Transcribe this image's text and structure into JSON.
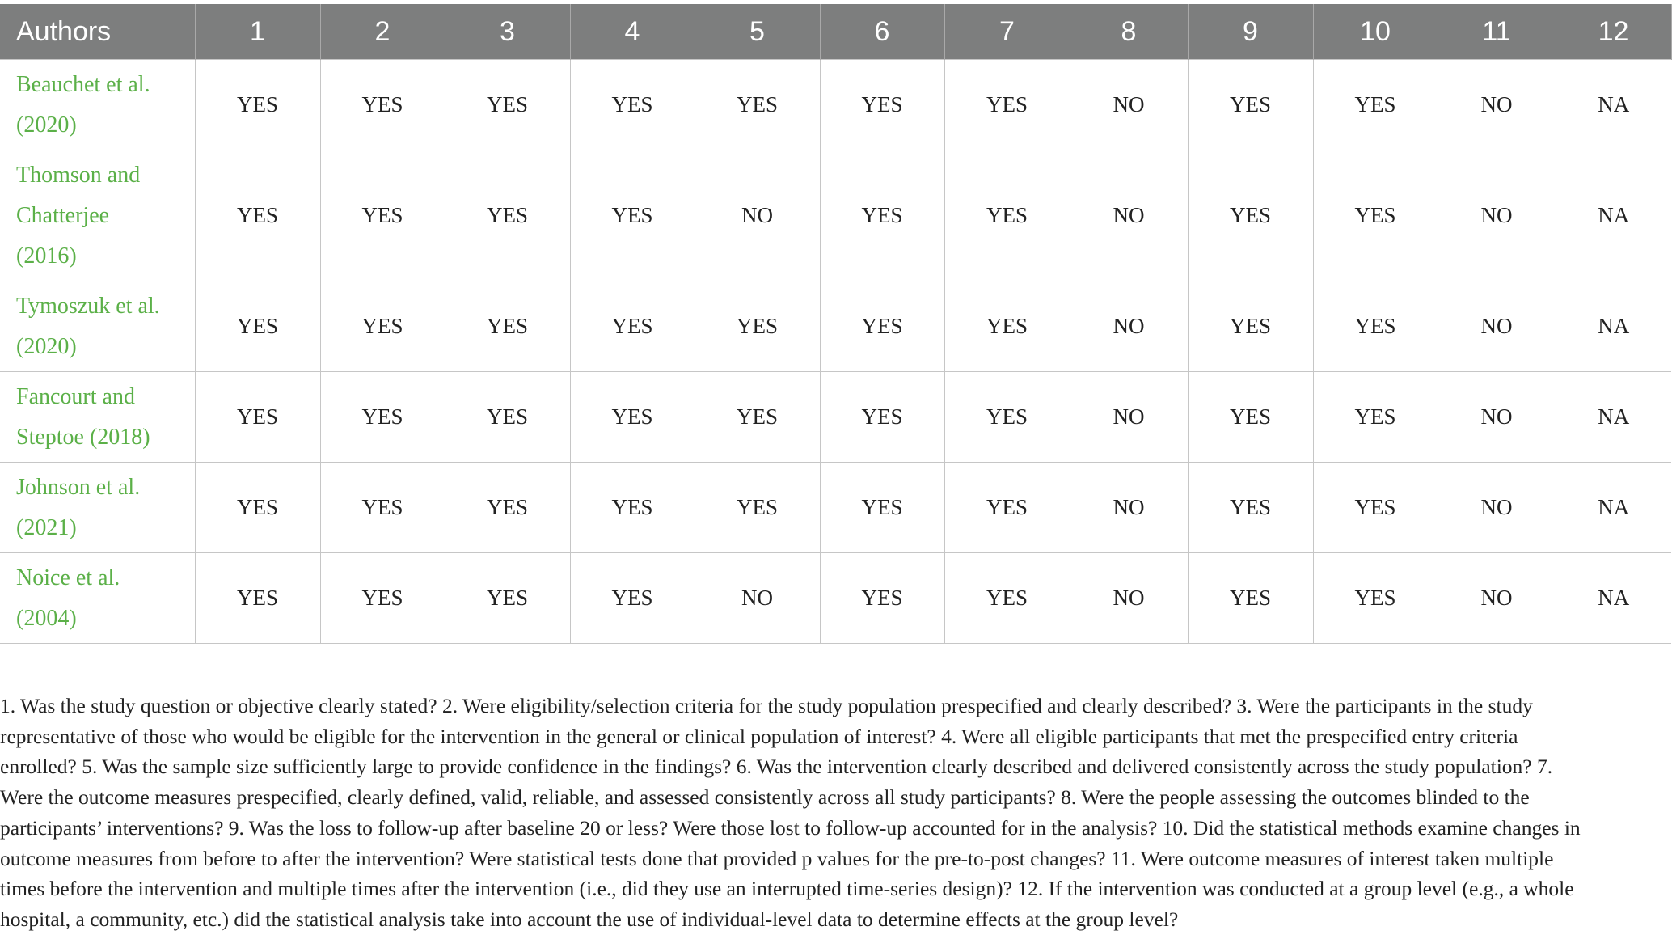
{
  "table": {
    "headers": [
      "Authors",
      "1",
      "2",
      "3",
      "4",
      "5",
      "6",
      "7",
      "8",
      "9",
      "10",
      "11",
      "12"
    ],
    "rows": [
      {
        "author_lines": [
          "Beauchet et al.",
          "(2020)"
        ],
        "values": [
          "YES",
          "YES",
          "YES",
          "YES",
          "YES",
          "YES",
          "YES",
          "NO",
          "YES",
          "YES",
          "NO",
          "NA"
        ]
      },
      {
        "author_lines": [
          "Thomson and",
          "Chatterjee",
          "(2016)"
        ],
        "values": [
          "YES",
          "YES",
          "YES",
          "YES",
          "NO",
          "YES",
          "YES",
          "NO",
          "YES",
          "YES",
          "NO",
          "NA"
        ]
      },
      {
        "author_lines": [
          "Tymoszuk et al.",
          "(2020)"
        ],
        "values": [
          "YES",
          "YES",
          "YES",
          "YES",
          "YES",
          "YES",
          "YES",
          "NO",
          "YES",
          "YES",
          "NO",
          "NA"
        ]
      },
      {
        "author_lines": [
          "Fancourt and",
          "Steptoe (2018)"
        ],
        "values": [
          "YES",
          "YES",
          "YES",
          "YES",
          "YES",
          "YES",
          "YES",
          "NO",
          "YES",
          "YES",
          "NO",
          "NA"
        ]
      },
      {
        "author_lines": [
          "Johnson et al.",
          "(2021)"
        ],
        "values": [
          "YES",
          "YES",
          "YES",
          "YES",
          "YES",
          "YES",
          "YES",
          "NO",
          "YES",
          "YES",
          "NO",
          "NA"
        ]
      },
      {
        "author_lines": [
          "Noice et al.",
          "(2004)"
        ],
        "values": [
          "YES",
          "YES",
          "YES",
          "YES",
          "NO",
          "YES",
          "YES",
          "NO",
          "YES",
          "YES",
          "NO",
          "NA"
        ]
      }
    ]
  },
  "footnote": [
    "1. Was the study question or objective clearly stated? 2. Were eligibility/selection criteria for the study population prespecified and clearly described? 3. Were the participants in the study",
    "representative of those who would be eligible for the intervention in the general or clinical population of interest? 4. Were all eligible participants that met the prespecified entry criteria",
    "enrolled? 5. Was the sample size sufficiently large to provide confidence in the findings? 6. Was the intervention clearly described and delivered consistently across the study population? 7.",
    "Were the outcome measures prespecified, clearly defined, valid, reliable, and assessed consistently across all study participants? 8. Were the people assessing the outcomes blinded to the",
    "participants’ interventions? 9. Was the loss to follow-up after baseline 20 or less? Were those lost to follow-up accounted for in the analysis? 10. Did the statistical methods examine changes in",
    "outcome measures from before to after the intervention? Were statistical tests done that provided p values for the pre-to-post changes? 11. Were outcome measures of interest taken multiple",
    "times before the intervention and multiple times after the intervention (i.e., did they use an interrupted time-series design)? 12. If the intervention was conducted at a group level (e.g., a whole",
    "hospital, a community, etc.) did the statistical analysis take into account the use of individual-level data to determine effects at the group level?"
  ],
  "colors": {
    "header_bg": "#7d7e7e",
    "author_text": "#5bb048",
    "border": "#c6c6c6"
  }
}
